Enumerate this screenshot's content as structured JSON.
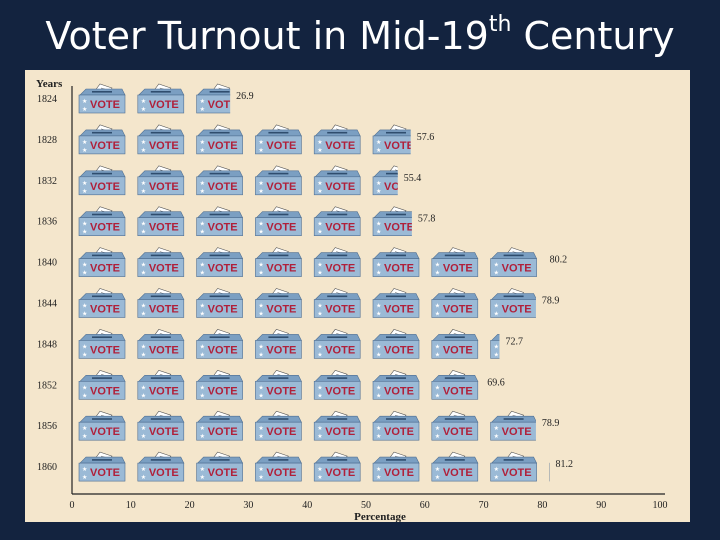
{
  "slide": {
    "title_main": "Voter Turnout in Mid-19",
    "title_sup": "th",
    "title_end": " Century"
  },
  "chart_data": {
    "type": "bar",
    "style": "pictograph",
    "icon": "ballot-box-icon",
    "icon_label": "VOTE",
    "icon_unit": 10,
    "categories": [
      "1824",
      "1828",
      "1832",
      "1836",
      "1840",
      "1844",
      "1848",
      "1852",
      "1856",
      "1860"
    ],
    "series": [
      {
        "values": [
          26.9,
          57.6,
          55.4,
          57.8,
          80.2,
          78.9,
          72.7,
          69.6,
          78.9,
          81.2
        ]
      }
    ],
    "value_labels": [
      "26.9",
      "57.6",
      "55.4",
      "57.8",
      "80.2",
      "78.9",
      "72.7",
      "69.6",
      "78.9",
      "81.2"
    ],
    "xlabel": "Percentage",
    "ylabel": "Years",
    "xlim": [
      0,
      100
    ],
    "xticks": [
      0,
      10,
      20,
      30,
      40,
      50,
      60,
      70,
      80,
      90,
      100
    ],
    "orientation": "horizontal",
    "grid": false,
    "legend": "none",
    "colors": {
      "background": "#13233f",
      "panel": "#f4e6cc",
      "box_body": "#9bbad6",
      "box_lid": "#7b9fc2",
      "vote_text": "#b0203a",
      "star": "#ffffff"
    }
  }
}
